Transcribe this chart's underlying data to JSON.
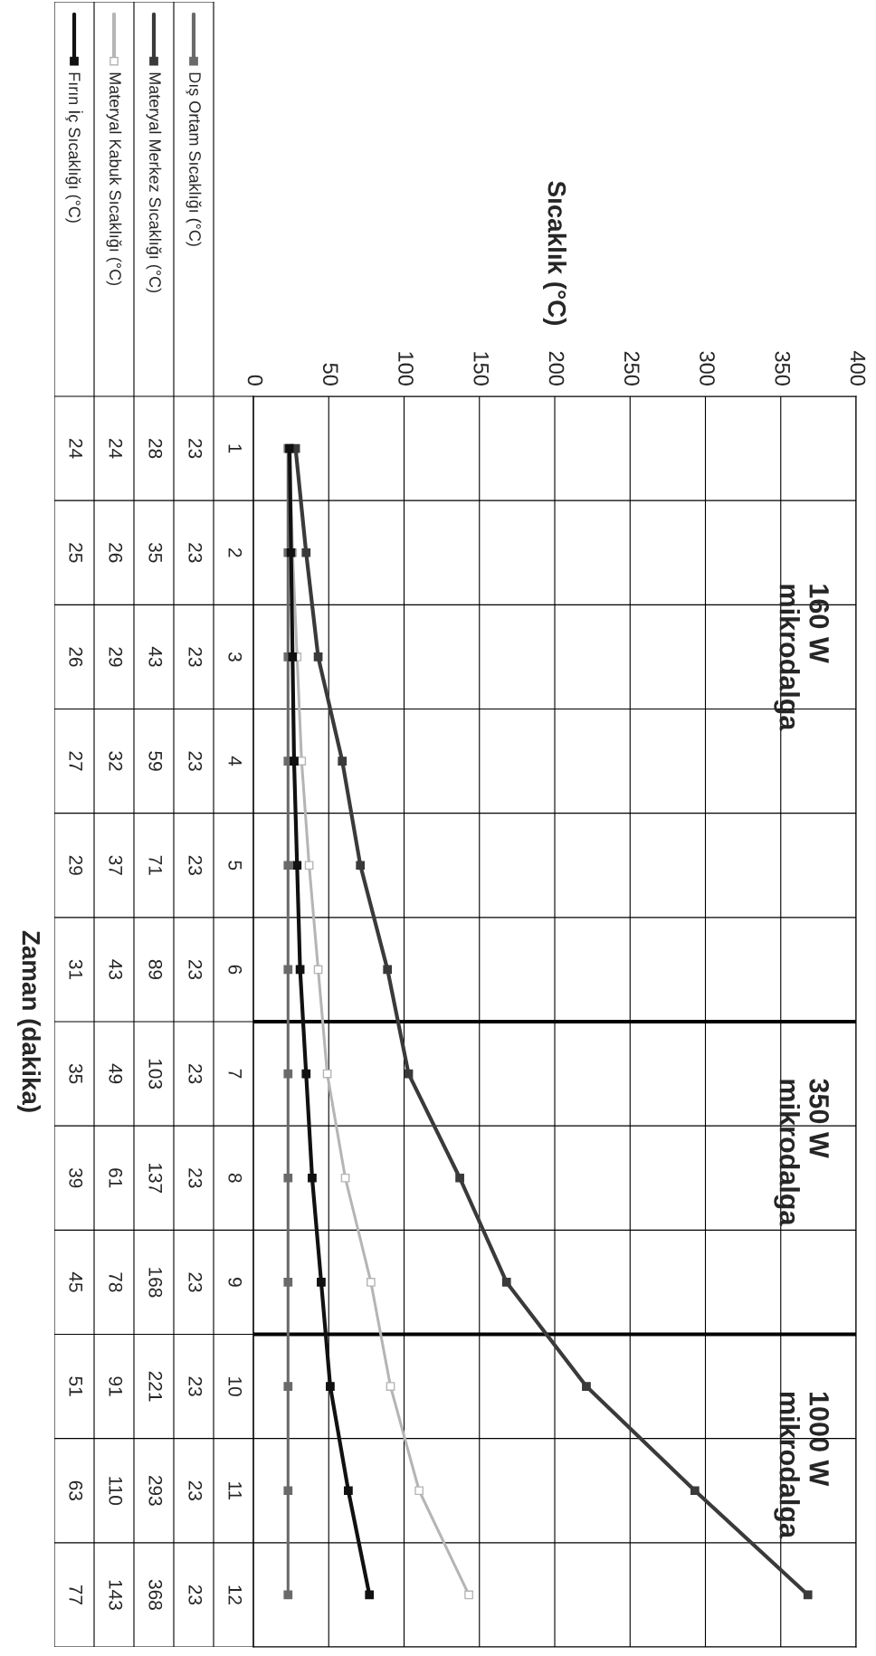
{
  "chart_data": {
    "type": "line",
    "orientation": "horizontal",
    "categories": [
      "1",
      "2",
      "3",
      "4",
      "5",
      "6",
      "7",
      "8",
      "9",
      "10",
      "11",
      "12"
    ],
    "xlim": [
      0,
      400
    ],
    "xticks": [
      0,
      50,
      100,
      150,
      200,
      250,
      300,
      350,
      400
    ],
    "series": [
      {
        "name": "Dış Ortam Sıcaklığı (°C)",
        "color": "#6a6a6a",
        "values": [
          23,
          23,
          23,
          23,
          23,
          23,
          23,
          23,
          23,
          23,
          23,
          23
        ]
      },
      {
        "name": "Materyal Merkez Sıcaklığı (°C)",
        "color": "#3a3a3a",
        "values": [
          28,
          35,
          43,
          59,
          71,
          89,
          103,
          137,
          168,
          221,
          293,
          368
        ]
      },
      {
        "name": "Materyal Kabuk Sıcaklığı (°C)",
        "color": "#b5b5b5",
        "values": [
          24,
          26,
          29,
          32,
          37,
          43,
          49,
          61,
          78,
          91,
          110,
          143
        ]
      },
      {
        "name": "Fırın İç Sıcaklığı (°C)",
        "color": "#111111",
        "values": [
          24,
          25,
          26,
          27,
          29,
          31,
          35,
          39,
          45,
          51,
          63,
          77
        ]
      }
    ],
    "annotations": [
      "Sıcaklık (°C)",
      "Zaman (dakika)",
      "160 W\nmikrodalga",
      "350 W\nmikrodalga",
      "1000 W\nmikrodalga"
    ],
    "grid": true,
    "marker": "square",
    "line_style": "solid",
    "data_labels": true,
    "legend": "left"
  }
}
